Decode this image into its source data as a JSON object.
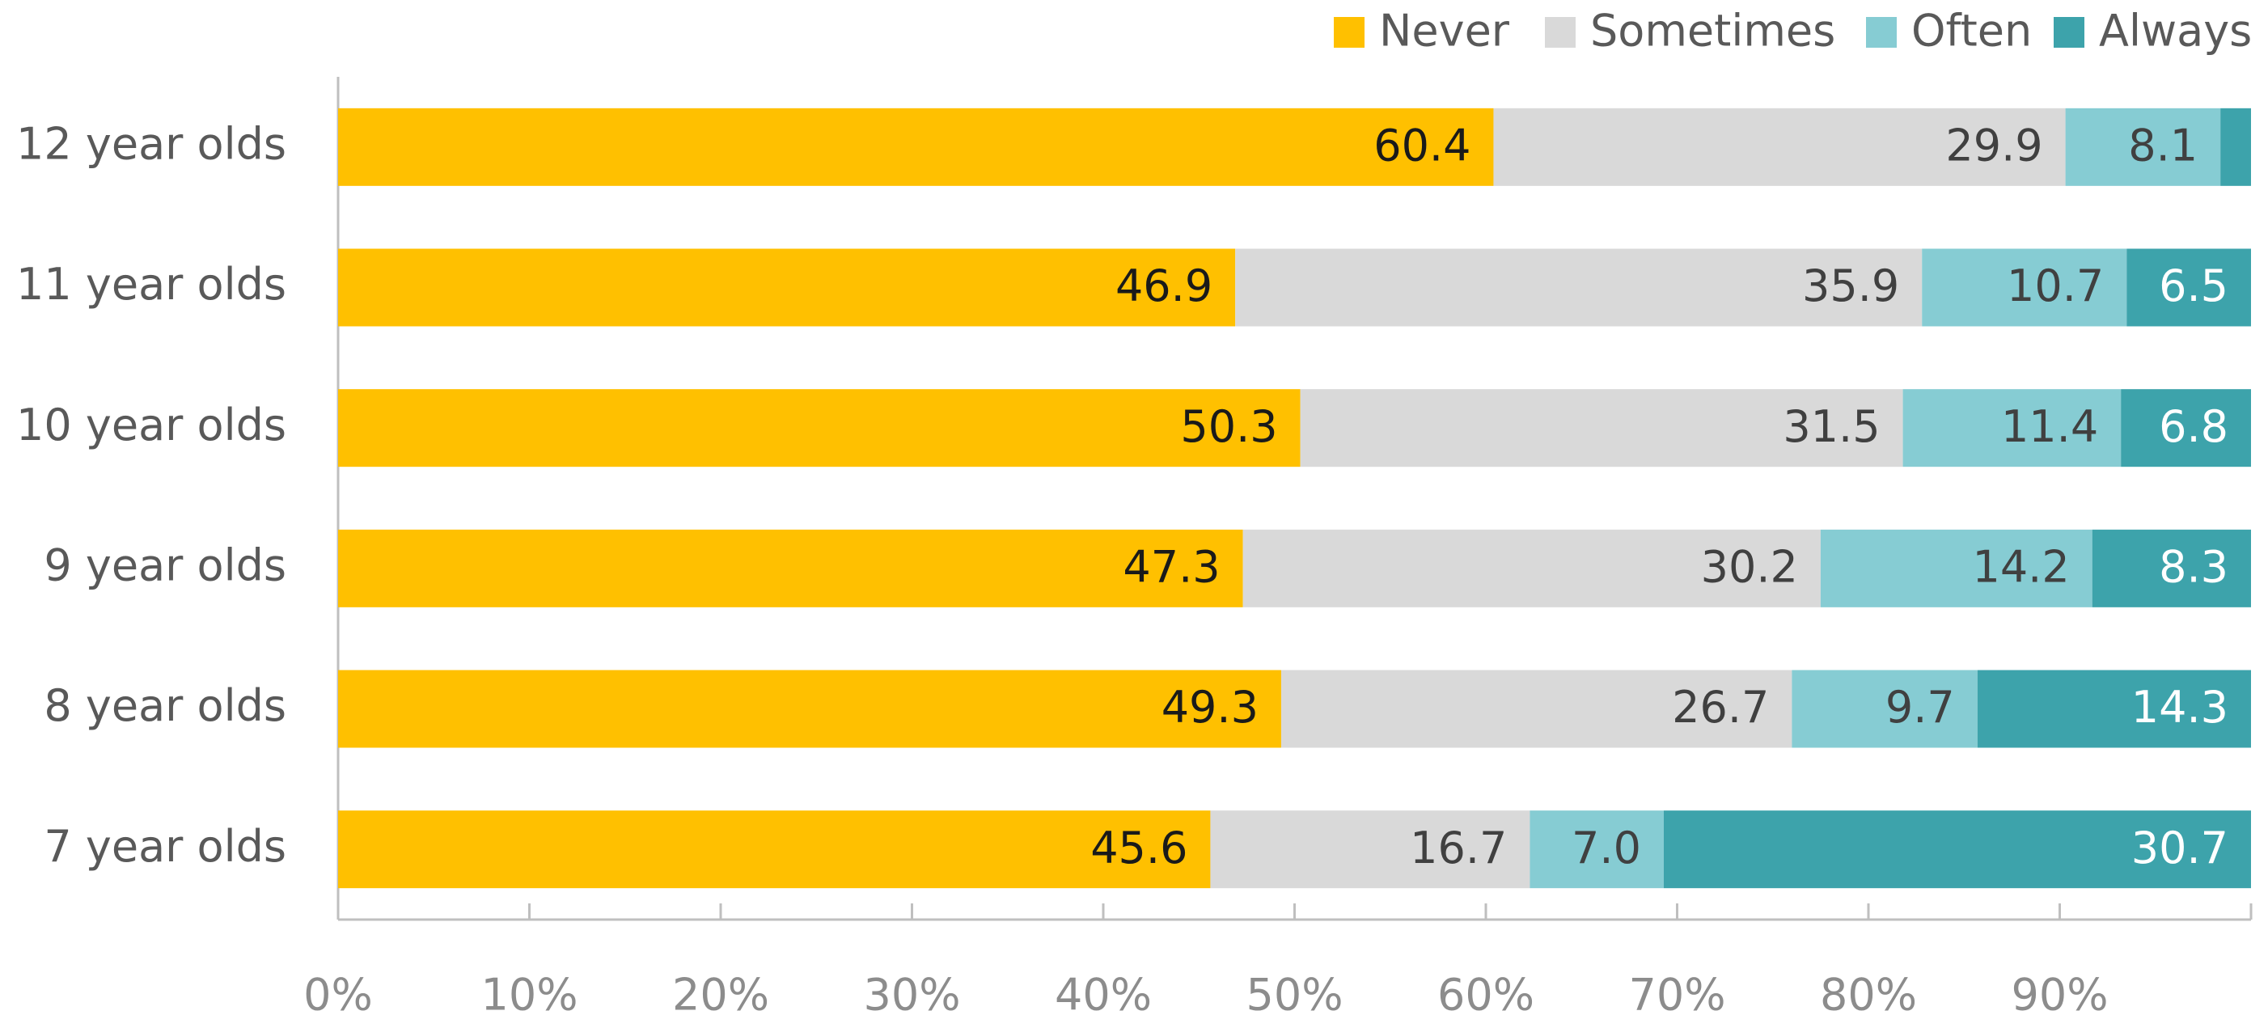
{
  "chart_data": {
    "type": "stacked_barh",
    "categories": [
      "12 year olds",
      "11 year olds",
      "10 year olds",
      "9 year olds",
      "8 year olds",
      "7 year olds"
    ],
    "series": [
      {
        "name": "Never",
        "color": "#FFC000",
        "label_color": "#1a1a1a",
        "values": [
          60.4,
          46.9,
          50.3,
          47.3,
          49.3,
          45.6
        ],
        "value_labels": [
          "60.4",
          "46.9",
          "50.3",
          "47.3",
          "49.3",
          "45.6"
        ]
      },
      {
        "name": "Sometimes",
        "color": "#D9D9D9",
        "label_color": "#404040",
        "values": [
          29.9,
          35.9,
          31.5,
          30.2,
          26.7,
          16.7
        ],
        "value_labels": [
          "29.9",
          "35.9",
          "31.5",
          "30.2",
          "26.7",
          "16.7"
        ]
      },
      {
        "name": "Often",
        "color": "#86CCD3",
        "label_color": "#404040",
        "values": [
          8.1,
          10.7,
          11.4,
          14.2,
          9.7,
          7.0
        ],
        "value_labels": [
          "8.1",
          "10.7",
          "11.4",
          "14.2",
          "9.7",
          "7.0"
        ]
      },
      {
        "name": "Always",
        "color": "#3DA3AB",
        "label_color": "#ffffff",
        "values": [
          1.6,
          6.5,
          6.8,
          8.3,
          14.3,
          30.7
        ],
        "value_labels": [
          null,
          "6.5",
          "6.8",
          "8.3",
          "14.3",
          "30.7"
        ]
      }
    ],
    "xlim": [
      0,
      100
    ],
    "xticks": [
      {
        "value": 0,
        "label": "0%"
      },
      {
        "value": 10,
        "label": "10%"
      },
      {
        "value": 20,
        "label": "20%"
      },
      {
        "value": 30,
        "label": "30%"
      },
      {
        "value": 40,
        "label": "40%"
      },
      {
        "value": 50,
        "label": "50%"
      },
      {
        "value": 60,
        "label": "60%"
      },
      {
        "value": 70,
        "label": "70%"
      },
      {
        "value": 80,
        "label": "80%"
      },
      {
        "value": 90,
        "label": "90%"
      }
    ],
    "legend": "top-right"
  }
}
